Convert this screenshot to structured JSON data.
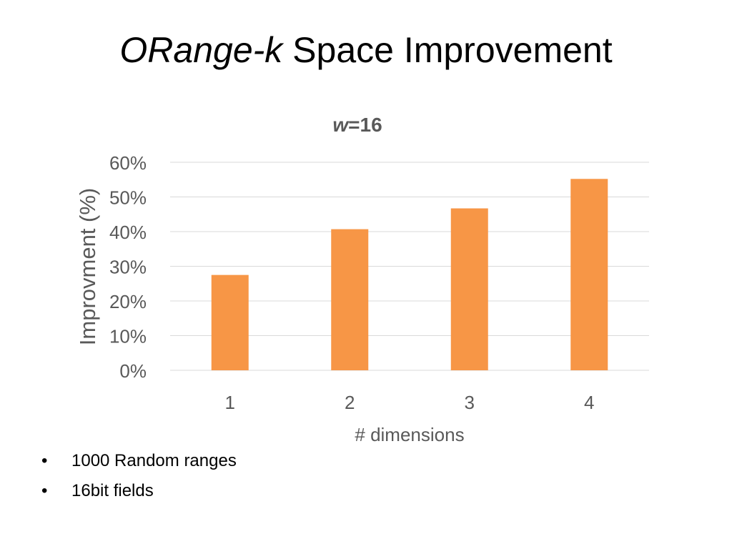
{
  "slide": {
    "title_italic": "ORange-k",
    "title_rest": " Space Improvement"
  },
  "bullets": [
    {
      "marker": "•",
      "text": "1000 Random ranges"
    },
    {
      "marker": "•",
      "text": "16bit fields"
    }
  ],
  "chart_data": {
    "type": "bar",
    "title_italic": "w",
    "title_rest": "=16",
    "categories": [
      "1",
      "2",
      "3",
      "4"
    ],
    "values": [
      27.5,
      40.7,
      46.7,
      55.2
    ],
    "xlabel": "# dimensions",
    "ylabel": "Improvment (%)",
    "ylim": [
      0,
      60
    ],
    "yticks": [
      0,
      10,
      20,
      30,
      40,
      50,
      60
    ],
    "ytick_labels": [
      "0%",
      "10%",
      "20%",
      "30%",
      "40%",
      "50%",
      "60%"
    ],
    "grid": true,
    "legend": "none",
    "bar_color": "#F79646",
    "grid_color": "#d9d9d9"
  }
}
